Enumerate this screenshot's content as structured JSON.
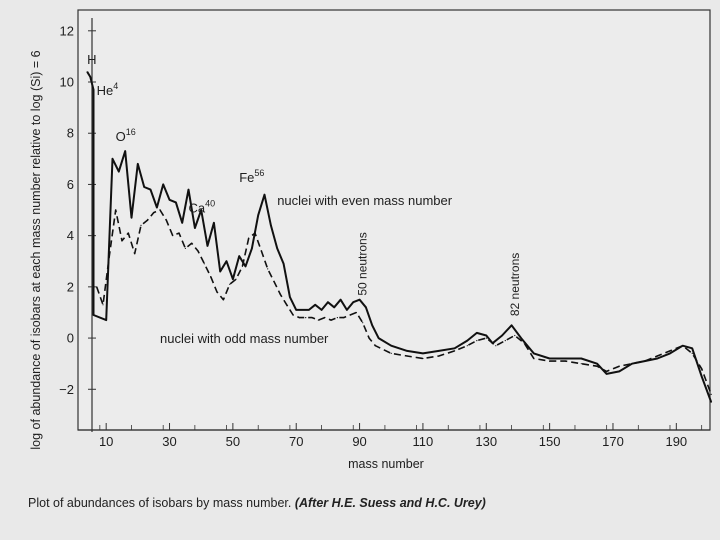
{
  "chart_data": {
    "type": "line",
    "ylabel": "log of abundance of isobars at each mass number relative to log (Si) = 6",
    "xlabel": "mass number",
    "xlim": [
      3,
      200
    ],
    "ylim": [
      -3.2,
      12.5
    ],
    "x_ticks": [
      10,
      30,
      50,
      70,
      90,
      110,
      130,
      150,
      170,
      190
    ],
    "y_ticks": [
      12,
      10,
      8,
      6,
      4,
      2,
      0,
      -2
    ],
    "y_tick_labels": [
      "12",
      "10",
      "8",
      "6",
      "4",
      "2",
      "0",
      "−2"
    ],
    "grid": false,
    "series": [
      {
        "name": "nuclei with even mass number",
        "style": "solid",
        "points": [
          [
            4,
            10.4
          ],
          [
            5,
            10.2
          ],
          [
            6,
            9.7
          ],
          [
            6,
            0.9
          ],
          [
            10,
            0.7
          ],
          [
            12,
            7.0
          ],
          [
            14,
            6.5
          ],
          [
            16,
            7.3
          ],
          [
            18,
            4.7
          ],
          [
            20,
            6.8
          ],
          [
            22,
            5.9
          ],
          [
            24,
            5.8
          ],
          [
            26,
            5.1
          ],
          [
            28,
            6.0
          ],
          [
            30,
            5.4
          ],
          [
            32,
            5.3
          ],
          [
            34,
            4.5
          ],
          [
            36,
            5.8
          ],
          [
            38,
            4.3
          ],
          [
            40,
            5.0
          ],
          [
            42,
            3.6
          ],
          [
            44,
            4.5
          ],
          [
            46,
            2.6
          ],
          [
            48,
            3.0
          ],
          [
            50,
            2.3
          ],
          [
            52,
            3.2
          ],
          [
            54,
            2.8
          ],
          [
            56,
            3.5
          ],
          [
            58,
            4.8
          ],
          [
            60,
            5.6
          ],
          [
            62,
            4.4
          ],
          [
            64,
            3.5
          ],
          [
            66,
            2.9
          ],
          [
            68,
            1.6
          ],
          [
            70,
            1.1
          ],
          [
            74,
            1.1
          ],
          [
            76,
            1.3
          ],
          [
            78,
            1.1
          ],
          [
            80,
            1.4
          ],
          [
            82,
            1.2
          ],
          [
            84,
            1.5
          ],
          [
            86,
            1.1
          ],
          [
            88,
            1.4
          ],
          [
            90,
            1.5
          ],
          [
            92,
            1.2
          ],
          [
            94,
            0.5
          ],
          [
            96,
            0.0
          ],
          [
            100,
            -0.3
          ],
          [
            105,
            -0.5
          ],
          [
            110,
            -0.6
          ],
          [
            115,
            -0.5
          ],
          [
            120,
            -0.4
          ],
          [
            124,
            -0.1
          ],
          [
            127,
            0.2
          ],
          [
            130,
            0.1
          ],
          [
            132,
            -0.2
          ],
          [
            135,
            0.1
          ],
          [
            138,
            0.5
          ],
          [
            141,
            0.0
          ],
          [
            145,
            -0.6
          ],
          [
            150,
            -0.8
          ],
          [
            155,
            -0.8
          ],
          [
            160,
            -0.8
          ],
          [
            165,
            -1.0
          ],
          [
            168,
            -1.4
          ],
          [
            172,
            -1.3
          ],
          [
            176,
            -1.0
          ],
          [
            180,
            -0.9
          ],
          [
            184,
            -0.8
          ],
          [
            188,
            -0.6
          ],
          [
            192,
            -0.3
          ],
          [
            195,
            -0.4
          ],
          [
            198,
            -1.5
          ],
          [
            201,
            -2.5
          ]
        ]
      },
      {
        "name": "nuclei with odd mass number",
        "style": "dashed",
        "points": [
          [
            7,
            2.0
          ],
          [
            9,
            1.3
          ],
          [
            11,
            3.2
          ],
          [
            13,
            5.0
          ],
          [
            15,
            3.8
          ],
          [
            17,
            4.1
          ],
          [
            19,
            3.3
          ],
          [
            21,
            4.4
          ],
          [
            23,
            4.6
          ],
          [
            25,
            4.9
          ],
          [
            27,
            5.0
          ],
          [
            29,
            4.6
          ],
          [
            31,
            4.0
          ],
          [
            33,
            4.1
          ],
          [
            35,
            3.5
          ],
          [
            37,
            3.7
          ],
          [
            39,
            3.4
          ],
          [
            41,
            2.9
          ],
          [
            43,
            2.4
          ],
          [
            45,
            1.8
          ],
          [
            47,
            1.5
          ],
          [
            49,
            2.1
          ],
          [
            51,
            2.3
          ],
          [
            53,
            2.8
          ],
          [
            55,
            3.9
          ],
          [
            57,
            4.1
          ],
          [
            59,
            3.4
          ],
          [
            61,
            2.7
          ],
          [
            63,
            2.2
          ],
          [
            65,
            1.7
          ],
          [
            67,
            1.3
          ],
          [
            69,
            0.9
          ],
          [
            71,
            0.8
          ],
          [
            73,
            0.8
          ],
          [
            75,
            0.8
          ],
          [
            77,
            0.7
          ],
          [
            79,
            0.8
          ],
          [
            81,
            0.7
          ],
          [
            83,
            0.8
          ],
          [
            85,
            0.8
          ],
          [
            87,
            0.9
          ],
          [
            89,
            1.0
          ],
          [
            91,
            0.6
          ],
          [
            93,
            0.0
          ],
          [
            95,
            -0.3
          ],
          [
            100,
            -0.6
          ],
          [
            105,
            -0.7
          ],
          [
            110,
            -0.8
          ],
          [
            115,
            -0.7
          ],
          [
            120,
            -0.5
          ],
          [
            124,
            -0.3
          ],
          [
            127,
            -0.1
          ],
          [
            130,
            0.0
          ],
          [
            133,
            -0.3
          ],
          [
            136,
            -0.1
          ],
          [
            139,
            0.1
          ],
          [
            142,
            -0.2
          ],
          [
            145,
            -0.8
          ],
          [
            150,
            -0.9
          ],
          [
            155,
            -0.9
          ],
          [
            160,
            -1.0
          ],
          [
            165,
            -1.1
          ],
          [
            168,
            -1.3
          ],
          [
            172,
            -1.1
          ],
          [
            176,
            -1.0
          ],
          [
            180,
            -0.9
          ],
          [
            184,
            -0.7
          ],
          [
            188,
            -0.5
          ],
          [
            192,
            -0.3
          ],
          [
            195,
            -0.6
          ],
          [
            198,
            -1.2
          ],
          [
            201,
            -2.2
          ]
        ]
      }
    ],
    "annotations": [
      {
        "base": "H",
        "sup": "",
        "x": 4,
        "y": 10.7
      },
      {
        "base": "He",
        "sup": "4",
        "x": 7,
        "y": 9.5
      },
      {
        "base": "O",
        "sup": "16",
        "x": 13,
        "y": 7.7
      },
      {
        "base": "Ca",
        "sup": "40",
        "x": 36,
        "y": 4.9
      },
      {
        "base": "Fe",
        "sup": "56",
        "x": 52,
        "y": 6.1
      },
      {
        "base": "50 neutrons",
        "sup": "",
        "x": 91,
        "y": 1.5,
        "rotate": true
      },
      {
        "base": "82 neutrons",
        "sup": "",
        "x": 139,
        "y": 0.7,
        "rotate": true
      }
    ],
    "series_labels": [
      {
        "series": 0,
        "x": 64,
        "y": 5.2
      },
      {
        "series": 1,
        "x": 27,
        "y": -0.2
      }
    ]
  },
  "caption": {
    "text": "Plot of abundances of isobars by mass number.",
    "credit": "(After H.E. Suess and H.C. Urey)"
  }
}
